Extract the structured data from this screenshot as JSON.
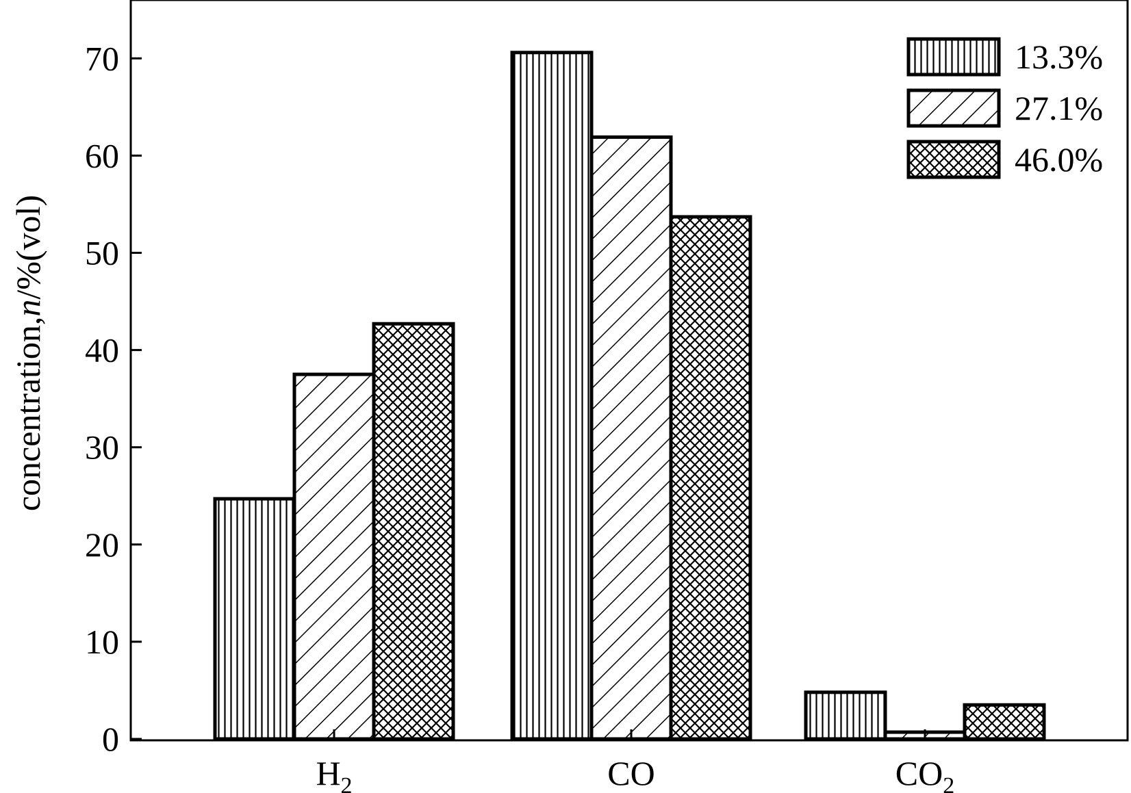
{
  "chart_data": {
    "type": "bar",
    "categories": [
      {
        "base": "H",
        "sub": "2"
      },
      {
        "base": "CO",
        "sub": ""
      },
      {
        "base": "CO",
        "sub": "2"
      }
    ],
    "series": [
      {
        "name": "13.3%",
        "pattern": "vertical",
        "values": [
          24.7,
          70.6,
          4.8
        ]
      },
      {
        "name": "27.1%",
        "pattern": "diagonal",
        "values": [
          37.5,
          61.9,
          0.7
        ]
      },
      {
        "name": "46.0%",
        "pattern": "crosshatch",
        "values": [
          42.7,
          53.7,
          3.5
        ]
      }
    ],
    "ylabel": {
      "prefix": "concentration,",
      "italic": "n",
      "suffix": "/%(vol)"
    },
    "ylim": [
      0,
      76
    ],
    "yticks": [
      0,
      10,
      20,
      30,
      40,
      50,
      60,
      70
    ],
    "legend_position": "top-right",
    "grid": false
  }
}
